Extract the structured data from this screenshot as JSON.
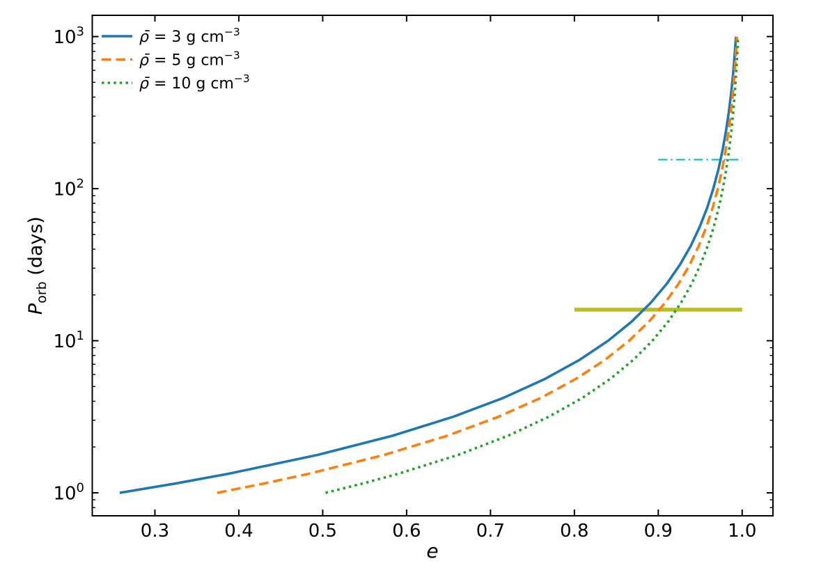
{
  "chart_data": {
    "type": "line",
    "title": "",
    "xlabel": "e",
    "ylabel": {
      "symbol": "P",
      "subscript": "orb",
      "unit": " (days)"
    },
    "x_axis": {
      "scale": "linear",
      "min": 0.2253,
      "max": 1.0367,
      "ticks": [
        0.3,
        0.4,
        0.5,
        0.6,
        0.7,
        0.8,
        0.9,
        1.0
      ],
      "tick_labels": [
        "0.3",
        "0.4",
        "0.5",
        "0.6",
        "0.7",
        "0.8",
        "0.9",
        "1.0"
      ]
    },
    "y_axis": {
      "scale": "log",
      "min": 0.706,
      "max": 1380,
      "ticks": [
        {
          "value": 1,
          "label_base": "10",
          "label_exp": "0"
        },
        {
          "value": 10,
          "label_base": "10",
          "label_exp": "1"
        },
        {
          "value": 100,
          "label_base": "10",
          "label_exp": "2"
        },
        {
          "value": 1000,
          "label_base": "10",
          "label_exp": "3"
        }
      ],
      "minor_mantissas": [
        2,
        3,
        4,
        5,
        6,
        7,
        8,
        9
      ]
    },
    "legend": {
      "position": "upper-left",
      "frame": false
    },
    "series": [
      {
        "name": "rho-3",
        "rho_value": "3",
        "label_var": "ρ̄",
        "label_rest": " = 3 g cm",
        "label_exp": "−3",
        "color": "#1f77b4",
        "line_style": "solid",
        "line_width": 3.6,
        "points": [
          [
            0.2581,
            1
          ],
          [
            0.3259,
            1.155
          ],
          [
            0.3876,
            1.334
          ],
          [
            0.4945,
            1.778
          ],
          [
            0.5828,
            2.371
          ],
          [
            0.6556,
            3.162
          ],
          [
            0.7158,
            4.217
          ],
          [
            0.7654,
            5.623
          ],
          [
            0.8064,
            7.499
          ],
          [
            0.8402,
            10
          ],
          [
            0.8681,
            13.34
          ],
          [
            0.8911,
            17.78
          ],
          [
            0.9101,
            23.71
          ],
          [
            0.9258,
            31.62
          ],
          [
            0.9388,
            42.17
          ],
          [
            0.9495,
            56.23
          ],
          [
            0.9583,
            74.99
          ],
          [
            0.9656,
            100
          ],
          [
            0.9716,
            133.4
          ],
          [
            0.9765,
            177.8
          ],
          [
            0.9806,
            237.1
          ],
          [
            0.984,
            316.2
          ],
          [
            0.9868,
            421.7
          ],
          [
            0.9891,
            562.3
          ],
          [
            0.991,
            750
          ],
          [
            0.9926,
            1000
          ]
        ]
      },
      {
        "name": "rho-5",
        "rho_value": "5",
        "label_var": "ρ̄",
        "label_rest": " = 5 g cm",
        "label_exp": "−3",
        "color": "#ff7f0e",
        "line_style": "dashed",
        "line_width": 3.6,
        "points": [
          [
            0.3742,
            1
          ],
          [
            0.4314,
            1.155
          ],
          [
            0.4834,
            1.334
          ],
          [
            0.5736,
            1.778
          ],
          [
            0.6481,
            2.371
          ],
          [
            0.7095,
            3.162
          ],
          [
            0.7603,
            4.217
          ],
          [
            0.8021,
            5.623
          ],
          [
            0.8367,
            7.499
          ],
          [
            0.8652,
            10
          ],
          [
            0.8887,
            13.34
          ],
          [
            0.9081,
            17.78
          ],
          [
            0.9242,
            23.71
          ],
          [
            0.9374,
            31.62
          ],
          [
            0.9483,
            42.17
          ],
          [
            0.9574,
            56.23
          ],
          [
            0.9648,
            74.99
          ],
          [
            0.971,
            100
          ],
          [
            0.976,
            133.4
          ],
          [
            0.9802,
            177.8
          ],
          [
            0.9837,
            237.1
          ],
          [
            0.9865,
            316.2
          ],
          [
            0.9889,
            421.7
          ],
          [
            0.9908,
            562.3
          ],
          [
            0.9924,
            750
          ],
          [
            0.9937,
            1000
          ]
        ]
      },
      {
        "name": "rho-10",
        "rho_value": "10",
        "label_var": "ρ̄",
        "label_rest": " = 10 g cm",
        "label_exp": "−3",
        "color": "#2ca02c",
        "line_style": "dotted",
        "line_width": 3.6,
        "points": [
          [
            0.5034,
            1
          ],
          [
            0.5488,
            1.155
          ],
          [
            0.5901,
            1.334
          ],
          [
            0.6617,
            1.778
          ],
          [
            0.7207,
            2.371
          ],
          [
            0.7695,
            3.162
          ],
          [
            0.8098,
            4.217
          ],
          [
            0.843,
            5.623
          ],
          [
            0.8704,
            7.499
          ],
          [
            0.893,
            10
          ],
          [
            0.9117,
            13.34
          ],
          [
            0.9271,
            17.78
          ],
          [
            0.9398,
            23.71
          ],
          [
            0.9503,
            31.62
          ],
          [
            0.959,
            42.17
          ],
          [
            0.9662,
            56.23
          ],
          [
            0.9721,
            74.99
          ],
          [
            0.977,
            100
          ],
          [
            0.981,
            133.4
          ],
          [
            0.9843,
            177.8
          ],
          [
            0.987,
            237.1
          ],
          [
            0.9893,
            316.2
          ],
          [
            0.9912,
            421.7
          ],
          [
            0.9927,
            562.3
          ],
          [
            0.994,
            750
          ],
          [
            0.995,
            1000
          ]
        ]
      }
    ],
    "reference_lines": [
      {
        "name": "olive-solid-reference-line",
        "P_days": 16,
        "e_start": 0.8,
        "e_end": 1.0,
        "color": "#bcbd22",
        "line_style": "solid",
        "line_width": 5.5
      },
      {
        "name": "cyan-dashdot-reference-line",
        "P_days": 155,
        "e_start": 0.9,
        "e_end": 1.0,
        "color": "#17becf",
        "line_style": "dashdot",
        "line_width": 2.2
      }
    ]
  },
  "colors": {
    "background": "#ffffff",
    "spine": "#000000",
    "text": "#000000"
  }
}
